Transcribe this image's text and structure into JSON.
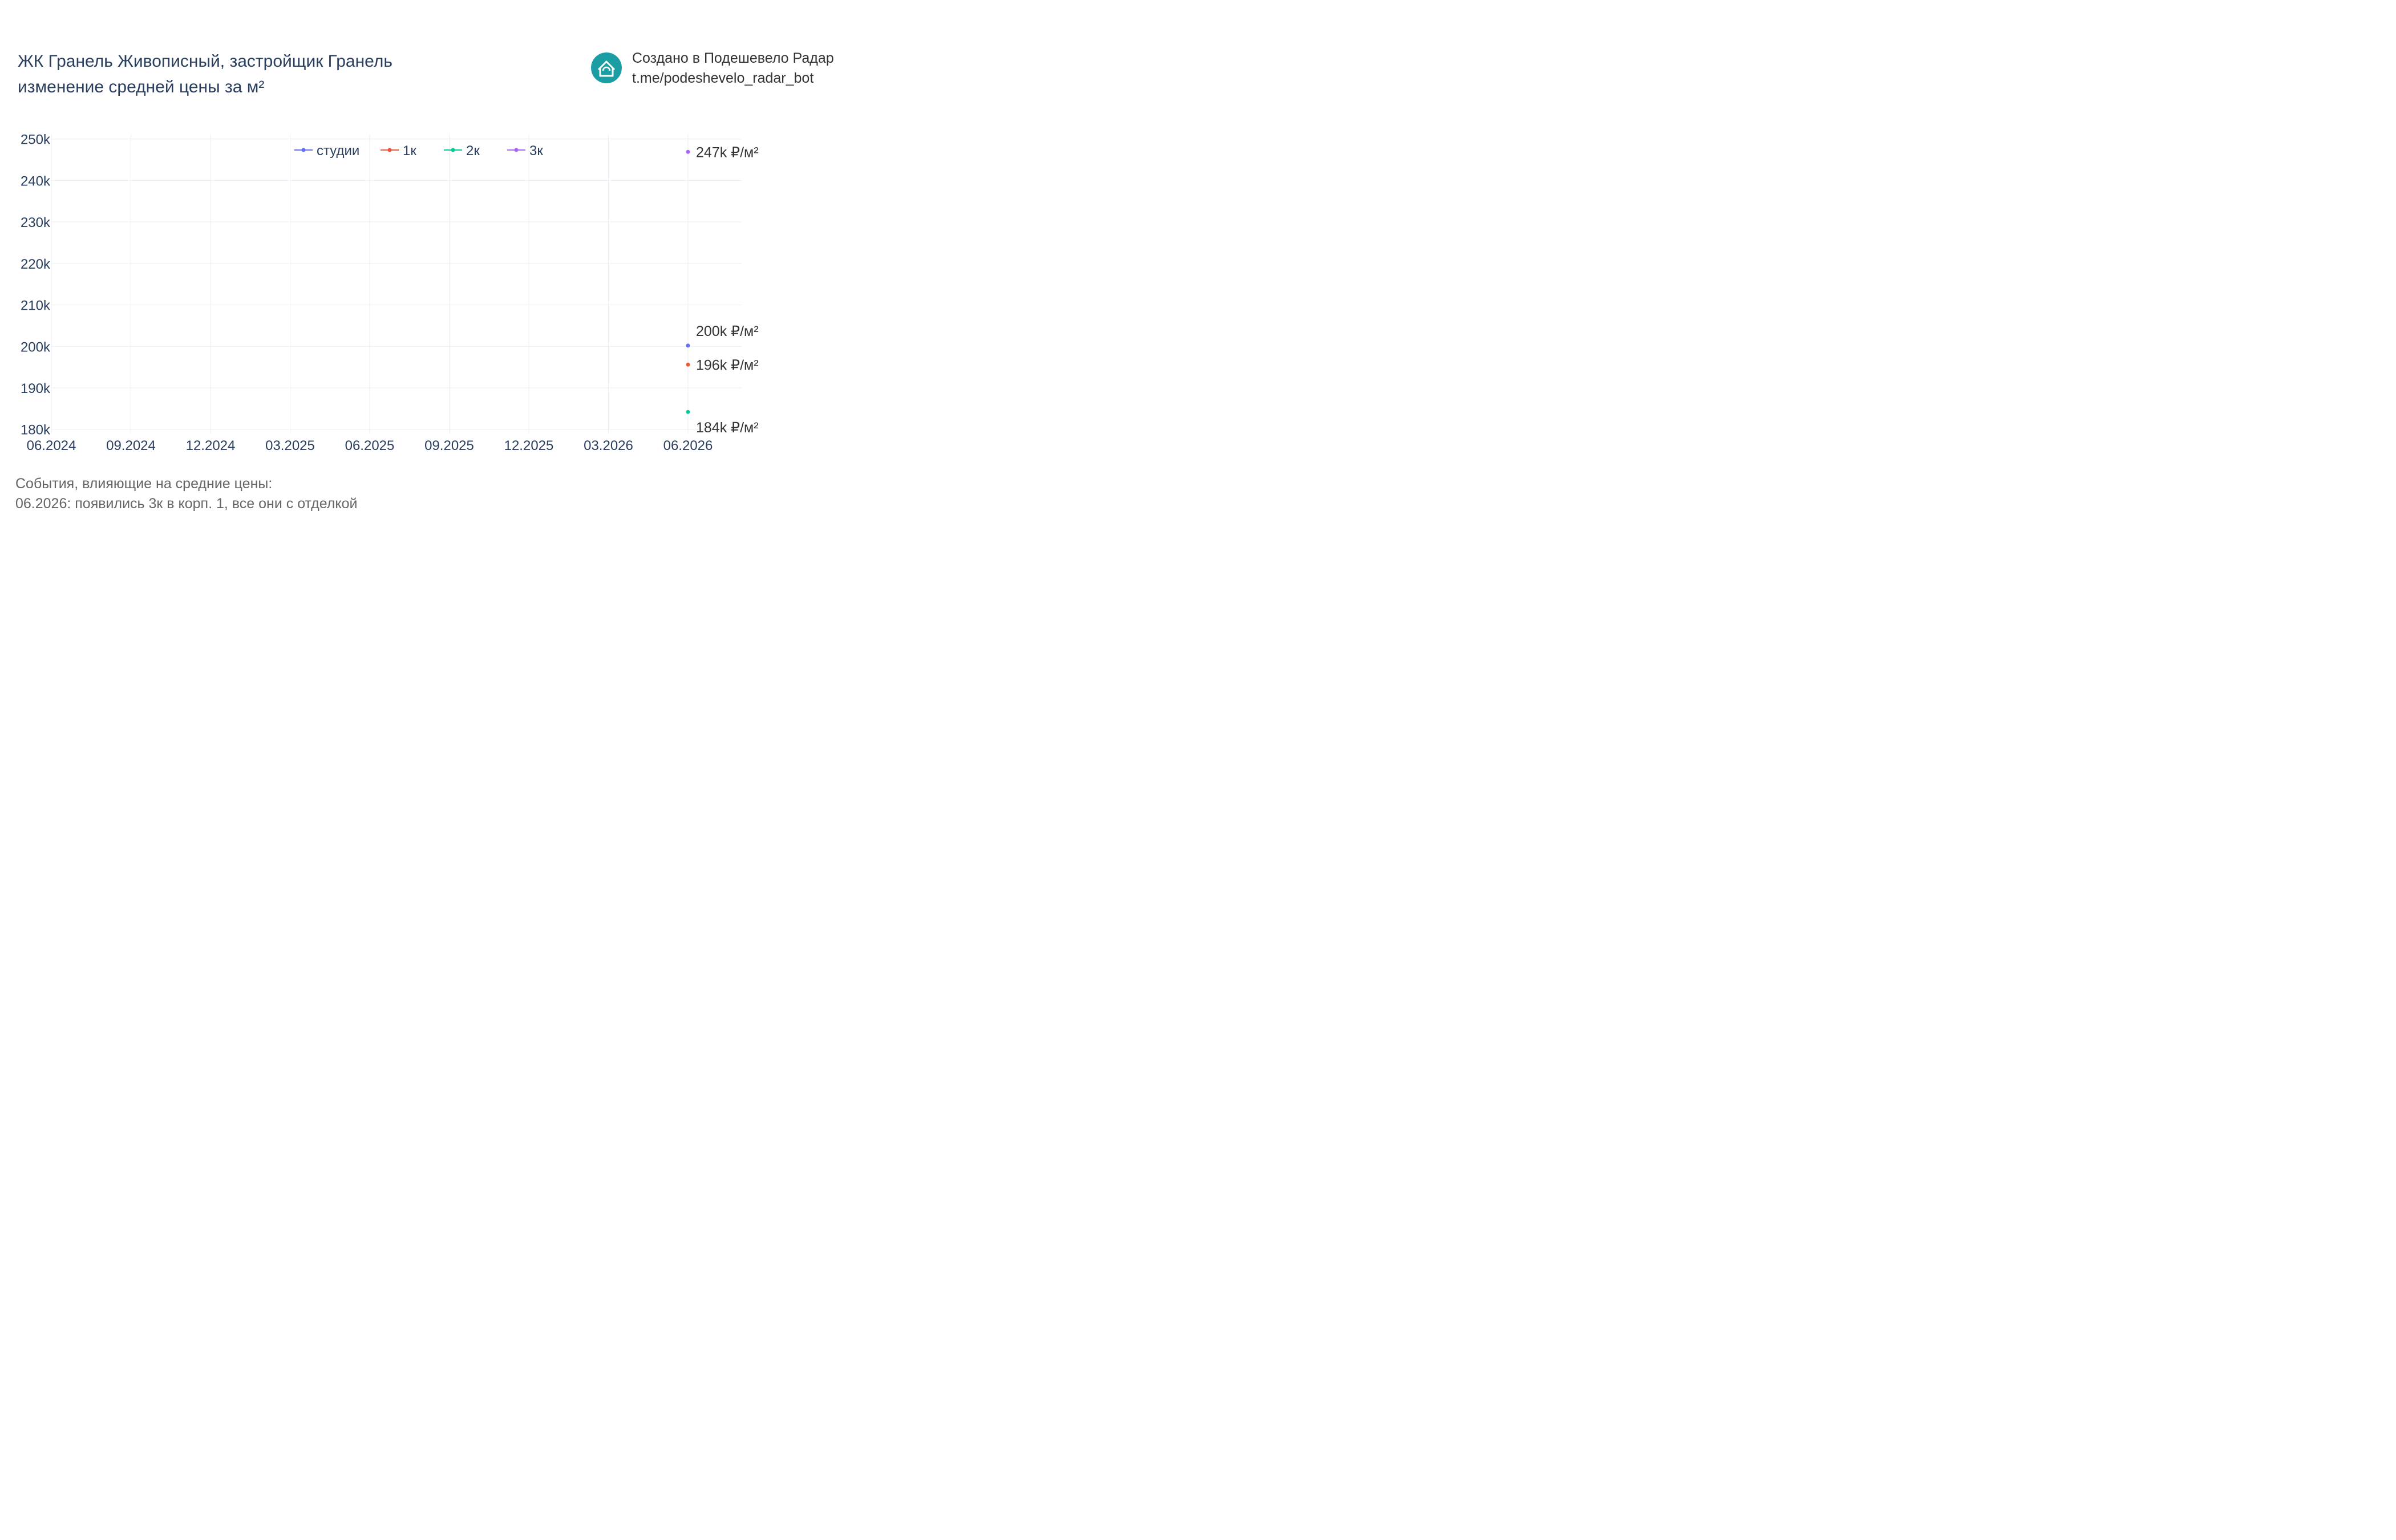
{
  "header": {
    "title_line1": "ЖК Гранель Живописный, застройщик Гранель",
    "title_line2": "изменение средней цены за м²"
  },
  "brand": {
    "line1": "Создано в Подешевело Радар",
    "line2": "t.me/podeshevelo_radar_bot",
    "logo_icon": "house-refresh-icon",
    "logo_color": "#1a9ea4"
  },
  "events": {
    "heading": "События, влияющие на средние цены:",
    "items": [
      "06.2026: появились 3к в корп. 1, все они с отделкой"
    ]
  },
  "chart_data": {
    "type": "line",
    "x_ticks": [
      "06.2024",
      "09.2024",
      "12.2024",
      "03.2025",
      "06.2025",
      "09.2025",
      "12.2025",
      "03.2026",
      "06.2026"
    ],
    "y_ticks": [
      180000,
      190000,
      200000,
      210000,
      220000,
      230000,
      240000,
      250000
    ],
    "y_tick_labels": [
      "180k",
      "190k",
      "200k",
      "210k",
      "220k",
      "230k",
      "240k",
      "250k"
    ],
    "ylim": [
      179000,
      251200
    ],
    "xlim": [
      "06.2024",
      "09.2026"
    ],
    "grid": true,
    "legend_position": "top-center",
    "series": [
      {
        "name": "студии",
        "color": "#636efa",
        "points": [
          {
            "x": "06.2026",
            "y": 200200,
            "label": "200k ₽/м²",
            "label_pos": "above"
          }
        ]
      },
      {
        "name": "1к",
        "color": "#ef553b",
        "points": [
          {
            "x": "06.2026",
            "y": 195600,
            "label": "196k ₽/м²",
            "label_pos": "right"
          }
        ]
      },
      {
        "name": "2к",
        "color": "#00cc96",
        "points": [
          {
            "x": "06.2026",
            "y": 184200,
            "label": "184k ₽/м²",
            "label_pos": "below"
          }
        ]
      },
      {
        "name": "3к",
        "color": "#ab63fa",
        "points": [
          {
            "x": "06.2026",
            "y": 246900,
            "label": "247k ₽/м²",
            "label_pos": "right"
          }
        ]
      }
    ]
  }
}
